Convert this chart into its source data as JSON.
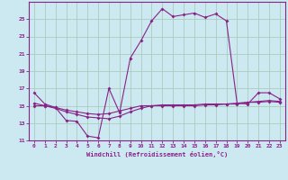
{
  "xlabel": "Windchill (Refroidissement éolien,°C)",
  "background_color": "#cce8f0",
  "grid_color": "#aaccbb",
  "line_color": "#882288",
  "spine_color": "#882288",
  "xlim": [
    -0.5,
    23.5
  ],
  "ylim": [
    11,
    27
  ],
  "yticks": [
    11,
    13,
    15,
    17,
    19,
    21,
    23,
    25
  ],
  "xticks": [
    0,
    1,
    2,
    3,
    4,
    5,
    6,
    7,
    8,
    9,
    10,
    11,
    12,
    13,
    14,
    15,
    16,
    17,
    18,
    19,
    20,
    21,
    22,
    23
  ],
  "series1_x": [
    0,
    1,
    2,
    3,
    4,
    5,
    6,
    7,
    8,
    9,
    10,
    11,
    12,
    13,
    14,
    15,
    16,
    17,
    18,
    19,
    20,
    21,
    22,
    23
  ],
  "series1_y": [
    16.5,
    15.2,
    14.8,
    13.3,
    13.2,
    11.5,
    11.3,
    17.0,
    14.2,
    20.5,
    22.5,
    24.8,
    26.2,
    25.3,
    25.5,
    25.7,
    25.2,
    25.6,
    24.8,
    15.3,
    15.2,
    16.5,
    16.5,
    15.8
  ],
  "series2_x": [
    0,
    1,
    2,
    3,
    4,
    5,
    6,
    7,
    8,
    9,
    10,
    11,
    12,
    13,
    14,
    15,
    16,
    17,
    18,
    19,
    20,
    21,
    22,
    23
  ],
  "series2_y": [
    15.0,
    15.0,
    14.8,
    14.5,
    14.3,
    14.1,
    14.0,
    14.1,
    14.4,
    14.7,
    15.0,
    15.0,
    15.1,
    15.1,
    15.1,
    15.1,
    15.2,
    15.2,
    15.2,
    15.3,
    15.4,
    15.5,
    15.6,
    15.5
  ],
  "series3_x": [
    0,
    1,
    2,
    3,
    4,
    5,
    6,
    7,
    8,
    9,
    10,
    11,
    12,
    13,
    14,
    15,
    16,
    17,
    18,
    19,
    20,
    21,
    22,
    23
  ],
  "series3_y": [
    15.3,
    15.0,
    14.7,
    14.3,
    14.0,
    13.7,
    13.6,
    13.5,
    13.8,
    14.3,
    14.7,
    15.0,
    15.0,
    15.0,
    15.0,
    15.0,
    15.1,
    15.1,
    15.2,
    15.2,
    15.4,
    15.4,
    15.5,
    15.4
  ]
}
